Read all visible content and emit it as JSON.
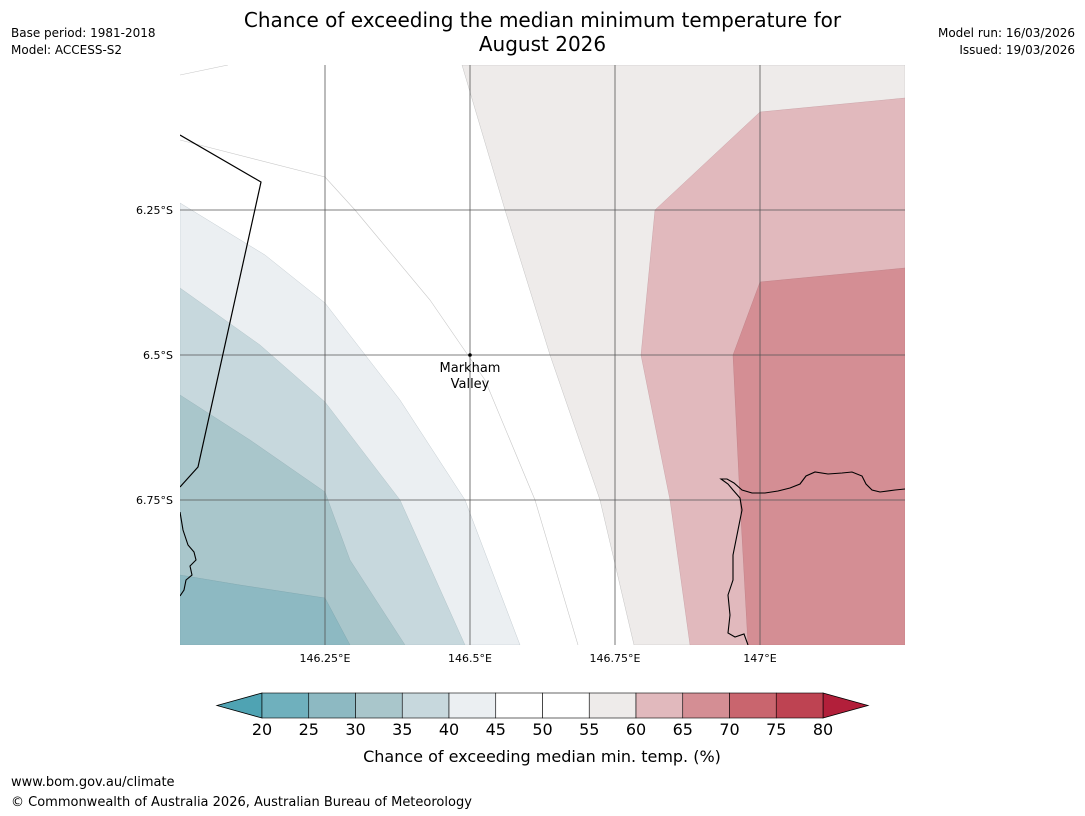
{
  "header": {
    "title_line1": "Chance of exceeding the median minimum temperature for",
    "title_line2": "August 2026",
    "base_period": "Base period: 1981-2018",
    "model": "Model: ACCESS-S2",
    "model_run": "Model run: 16/03/2026",
    "issued": "Issued: 19/03/2026"
  },
  "map": {
    "lon_labels": [
      "146.25°E",
      "146.5°E",
      "146.75°E",
      "147°E"
    ],
    "lat_labels": [
      "6.25°S",
      "6.5°S",
      "6.75°S"
    ],
    "place": {
      "name_line1": "Markham",
      "name_line2": "Valley",
      "lat": "6.5°S",
      "lon": "146.5°E"
    }
  },
  "colorbar": {
    "ticks": [
      "20",
      "25",
      "30",
      "35",
      "40",
      "45",
      "50",
      "55",
      "60",
      "65",
      "70",
      "75",
      "80"
    ],
    "colors": {
      "under": "#4fa3b3",
      "bins": [
        "#6fb0bd",
        "#8db9c2",
        "#a9c6cb",
        "#c7d8dd",
        "#ebeff2",
        "#ffffff",
        "#ffffff",
        "#eeebea",
        "#e1b9bd",
        "#d48e94",
        "#c9656e",
        "#be4352"
      ],
      "over": "#b21f3a"
    },
    "label": "Chance of exceeding median min. temp. (%)"
  },
  "footer": {
    "website": "www.bom.gov.au/climate",
    "copyright": "© Commonwealth of Australia 2026, Australian Bureau of Meteorology"
  }
}
